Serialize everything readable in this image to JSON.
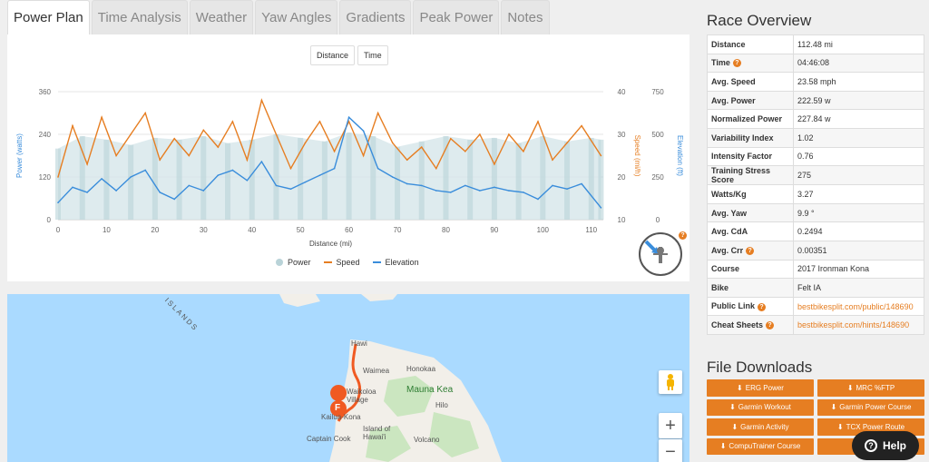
{
  "tabs": [
    "Power Plan",
    "Time Analysis",
    "Weather",
    "Yaw Angles",
    "Gradients",
    "Peak Power",
    "Notes"
  ],
  "active_tab": 0,
  "chart_toggle": {
    "distance": "Distance",
    "time": "Time"
  },
  "chart_data": {
    "type": "line",
    "title": "",
    "xlabel": "Distance (mi)",
    "y_left_label": "Power (watts)",
    "y_right1_label": "Speed (mi/h)",
    "y_right2_label": "Elevation (ft)",
    "x_ticks": [
      0,
      10,
      20,
      30,
      40,
      50,
      60,
      70,
      80,
      90,
      100,
      110
    ],
    "y_left_ticks": [
      0,
      120,
      240,
      360
    ],
    "y_right1_ticks": [
      10,
      20,
      30,
      40
    ],
    "y_right2_ticks": [
      0,
      250,
      500,
      750
    ],
    "xlim": [
      0,
      112.48
    ],
    "ylim_left": [
      0,
      360
    ],
    "ylim_speed": [
      10,
      40
    ],
    "ylim_elevation": [
      0,
      750
    ],
    "grid": true,
    "legend_placement": "bottom",
    "series": [
      {
        "name": "Power",
        "type": "bar",
        "color": "#b9d3d8",
        "x": [
          0,
          5,
          10,
          15,
          20,
          25,
          30,
          35,
          40,
          45,
          50,
          55,
          60,
          65,
          70,
          75,
          80,
          85,
          90,
          95,
          100,
          105,
          110,
          112
        ],
        "values": [
          200,
          235,
          225,
          210,
          230,
          225,
          235,
          215,
          225,
          240,
          230,
          220,
          245,
          235,
          205,
          220,
          235,
          225,
          230,
          215,
          235,
          220,
          230,
          225
        ]
      },
      {
        "name": "Speed",
        "type": "line",
        "color": "#e67e22",
        "x": [
          0,
          3,
          6,
          9,
          12,
          15,
          18,
          21,
          24,
          27,
          30,
          33,
          36,
          39,
          42,
          45,
          48,
          51,
          54,
          57,
          60,
          63,
          66,
          69,
          72,
          75,
          78,
          81,
          84,
          87,
          90,
          93,
          96,
          99,
          102,
          105,
          108,
          112
        ],
        "values": [
          20,
          32,
          23,
          34,
          25,
          30,
          35,
          24,
          29,
          25,
          31,
          27,
          33,
          24,
          38,
          30,
          22,
          28,
          33,
          26,
          33,
          25,
          35,
          28,
          24,
          27,
          22,
          29,
          26,
          30,
          23,
          30,
          26,
          33,
          24,
          28,
          32,
          25
        ]
      },
      {
        "name": "Elevation",
        "type": "line",
        "color": "#3a8ddb",
        "x": [
          0,
          3,
          6,
          9,
          12,
          15,
          18,
          21,
          24,
          27,
          30,
          33,
          36,
          39,
          42,
          45,
          48,
          51,
          54,
          57,
          60,
          63,
          66,
          69,
          72,
          75,
          78,
          81,
          84,
          87,
          90,
          93,
          96,
          99,
          102,
          105,
          108,
          112
        ],
        "values": [
          100,
          190,
          160,
          240,
          170,
          250,
          290,
          160,
          120,
          200,
          170,
          260,
          290,
          230,
          340,
          200,
          180,
          220,
          260,
          300,
          600,
          520,
          300,
          250,
          210,
          200,
          170,
          160,
          200,
          170,
          190,
          170,
          160,
          120,
          200,
          180,
          210,
          70
        ]
      }
    ]
  },
  "overview": {
    "title": "Race Overview",
    "rows": [
      {
        "key": "Distance",
        "value": "112.48 mi"
      },
      {
        "key": "Time",
        "value": "04:46:08",
        "help": true
      },
      {
        "key": "Avg. Speed",
        "value": "23.58 mph"
      },
      {
        "key": "Avg. Power",
        "value": "222.59 w"
      },
      {
        "key": "Normalized Power",
        "value": "227.84 w"
      },
      {
        "key": "Variability Index",
        "value": "1.02"
      },
      {
        "key": "Intensity Factor",
        "value": "0.76"
      },
      {
        "key": "Training Stress Score",
        "value": "275"
      },
      {
        "key": "Watts/Kg",
        "value": "3.27"
      },
      {
        "key": "Avg. Yaw",
        "value": "9.9 °"
      },
      {
        "key": "Avg. CdA",
        "value": "0.2494"
      },
      {
        "key": "Avg. Crr",
        "value": "0.00351",
        "help": true
      },
      {
        "key": "Course",
        "value": "2017 Ironman Kona"
      },
      {
        "key": "Bike",
        "value": "Felt IA"
      },
      {
        "key": "Public Link",
        "value": "bestbikesplit.com/public/148690",
        "help": true,
        "link": true
      },
      {
        "key": "Cheat Sheets",
        "value": "bestbikesplit.com/hints/148690",
        "help": true,
        "link": true
      }
    ]
  },
  "downloads": {
    "title": "File Downloads",
    "buttons": [
      "ERG Power",
      "MRC %FTP",
      "Garmin Workout",
      "Garmin Power Course",
      "Garmin Activity",
      "TCX Power Route",
      "CompuTrainer Course",
      ""
    ]
  },
  "map": {
    "labels": {
      "islands": "ISLANDS",
      "hawi": "Hawi",
      "honokaa": "Honokaa",
      "waimea": "Waimea",
      "waikoloa": "Waikoloa\nVillage",
      "mauna_kea": "Mauna Kea",
      "hilo": "Hilo",
      "kailua": "Kailua-Kona",
      "island": "Island of\nHawai'i",
      "captain_cook": "Captain Cook",
      "volcano": "Volcano"
    },
    "finish_marker": "F",
    "zoom_in": "+",
    "zoom_out": "−"
  },
  "help_button": "Help",
  "colors": {
    "accent": "#e67e22",
    "power": "#b9d3d8",
    "speed": "#e67e22",
    "elevation": "#3a8ddb"
  }
}
